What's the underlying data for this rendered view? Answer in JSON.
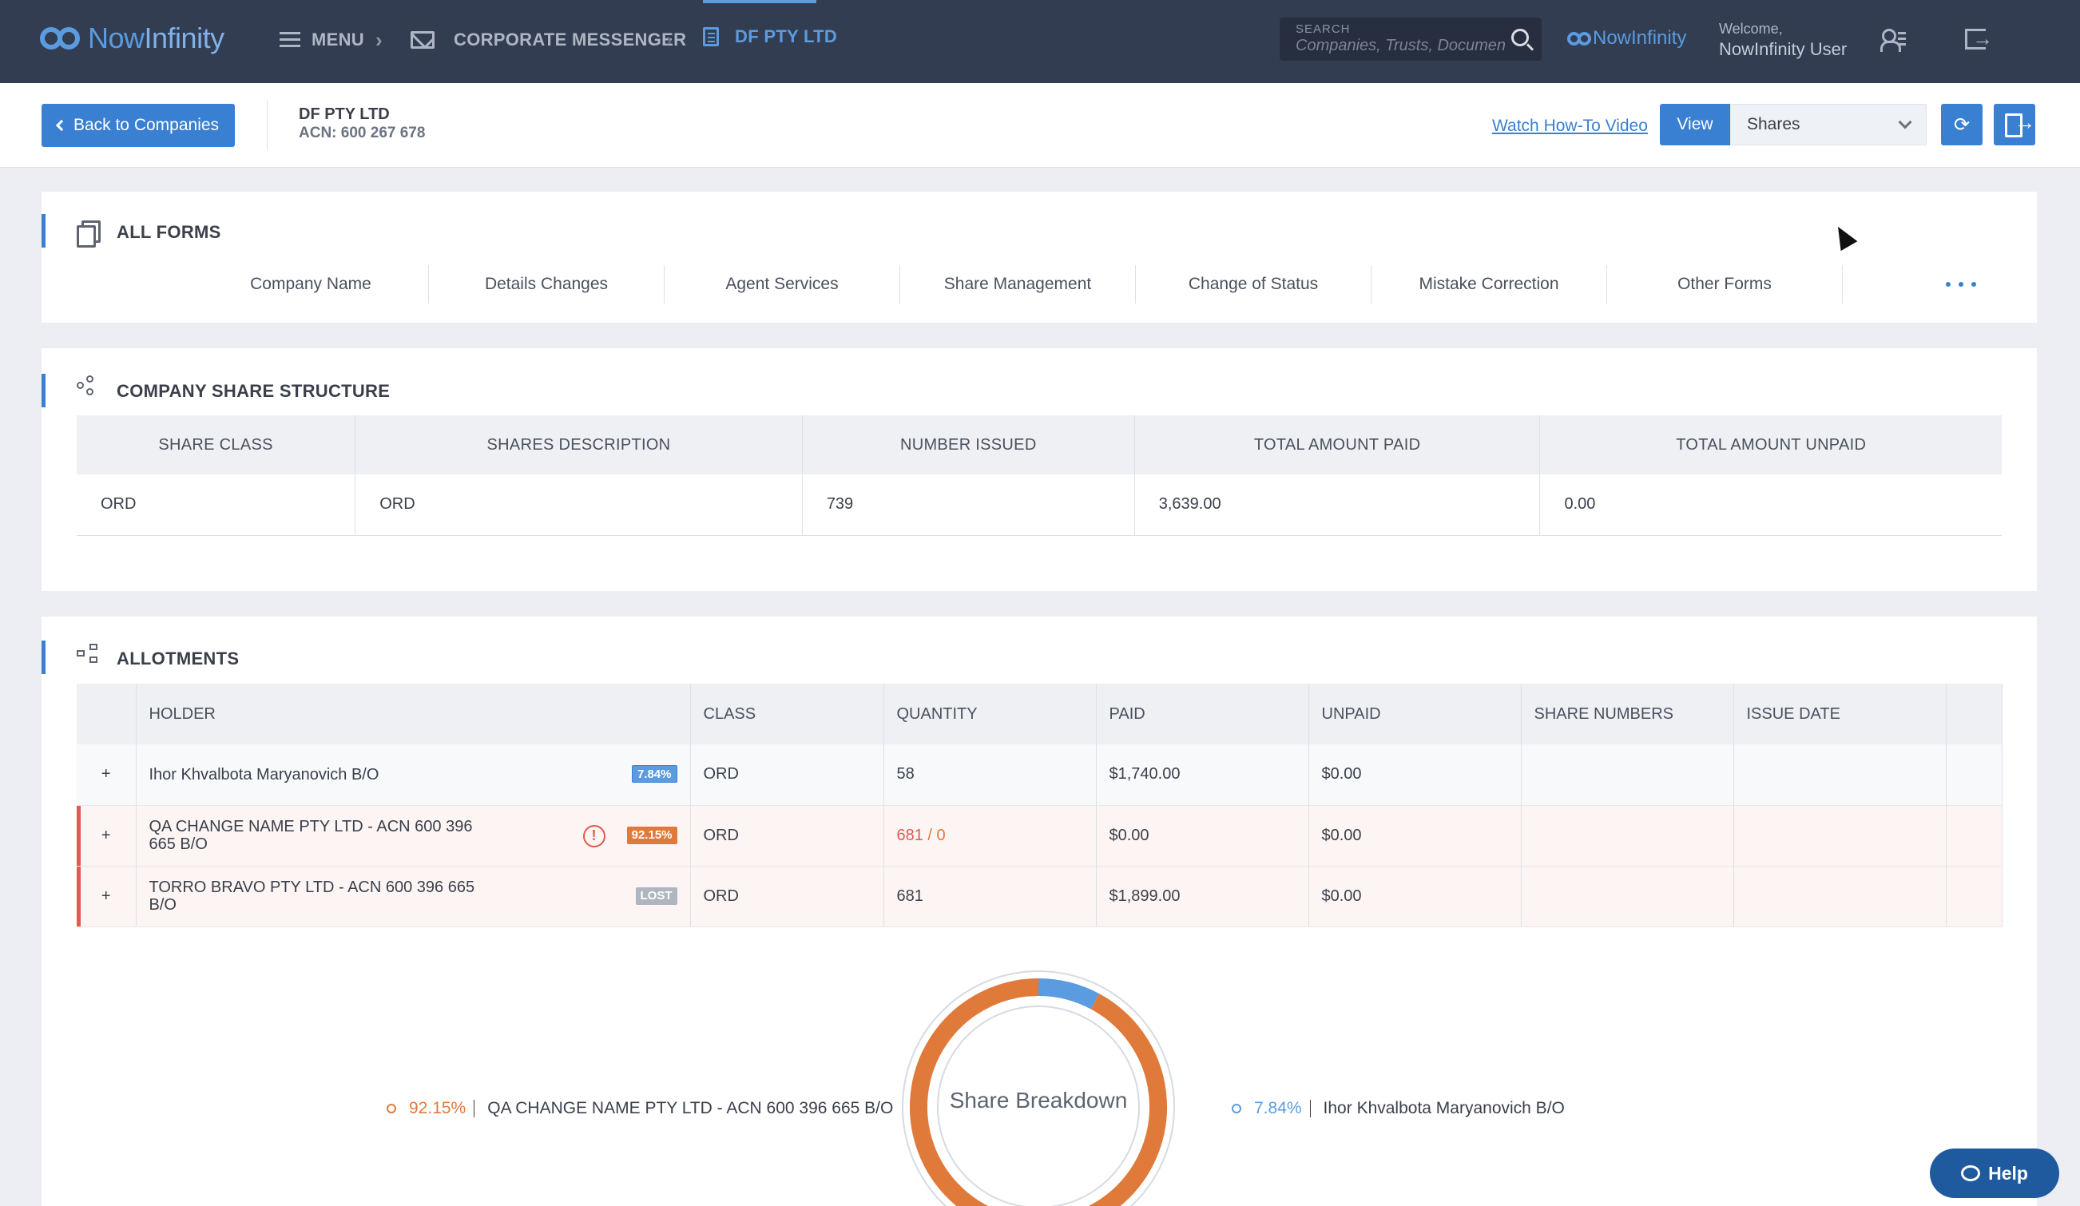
{
  "topnav": {
    "logo_text_a": "Now",
    "logo_text_b": "Infinity",
    "menu_label": "MENU",
    "breadcrumb_sep": "›",
    "corporate_label": "CORPORATE MESSENGER",
    "company_label": "DF PTY LTD",
    "search": {
      "label": "SEARCH",
      "placeholder": "Companies, Trusts, Documents"
    },
    "brand_label": "NowInfinity",
    "welcome": "Welcome,",
    "user_name": "NowInfinity User"
  },
  "subheader": {
    "back_label": "Back to Companies",
    "company_name": "DF PTY LTD",
    "company_acn": "ACN: 600 267 678",
    "howto_label": "Watch How-To Video",
    "view_label": "View",
    "view_select": "Shares"
  },
  "forms": {
    "title": "ALL FORMS",
    "tabs": [
      "Company Name",
      "Details Changes",
      "Agent Services",
      "Share Management",
      "Change of Status",
      "Mistake Correction",
      "Other Forms"
    ]
  },
  "share_structure": {
    "title": "COMPANY SHARE STRUCTURE",
    "headers": [
      "SHARE CLASS",
      "SHARES DESCRIPTION",
      "NUMBER ISSUED",
      "TOTAL AMOUNT PAID",
      "TOTAL AMOUNT UNPAID"
    ],
    "rows": [
      [
        "ORD",
        "ORD",
        "739",
        "3,639.00",
        "0.00"
      ]
    ]
  },
  "allotments": {
    "title": "ALLOTMENTS",
    "headers": [
      "HOLDER",
      "CLASS",
      "QUANTITY",
      "PAID",
      "UNPAID",
      "SHARE NUMBERS",
      "ISSUE DATE"
    ],
    "rows": [
      {
        "holder": "Ihor Khvalbota Maryanovich B/O",
        "badge": "7.84%",
        "class": "ORD",
        "quantity": "58",
        "paid": "$1,740.00",
        "unpaid": "$0.00",
        "share_numbers": "",
        "issue_date": ""
      },
      {
        "holder": "QA CHANGE NAME PTY LTD - ACN 600 396 665 B/O",
        "badge": "92.15%",
        "warning": "!",
        "class": "ORD",
        "quantity": "681",
        "quantity_suffix": " / 0",
        "paid": "$0.00",
        "unpaid": "$0.00",
        "share_numbers": "",
        "issue_date": ""
      },
      {
        "holder": "TORRO BRAVO PTY LTD - ACN 600 396 665 B/O",
        "badge": "LOST",
        "class": "ORD",
        "quantity": "681",
        "paid": "$1,899.00",
        "unpaid": "$0.00",
        "share_numbers": "",
        "issue_date": ""
      }
    ]
  },
  "breakdown": {
    "center_label": "Share Breakdown",
    "slices": [
      {
        "pct_label": "92.15%",
        "name": "QA CHANGE NAME PTY LTD - ACN 600 396 665 B/O",
        "value": 92.15,
        "color": "#e07a3a"
      },
      {
        "pct_label": "7.84%",
        "name": "Ihor Khvalbota Maryanovich B/O",
        "value": 7.84,
        "color": "#5b9be0"
      }
    ]
  },
  "help_label": "Help",
  "colors": {
    "accent": "#3a80d2",
    "nav": "#333d52",
    "warning": "#e05a4e",
    "orange": "#e07a3a"
  }
}
